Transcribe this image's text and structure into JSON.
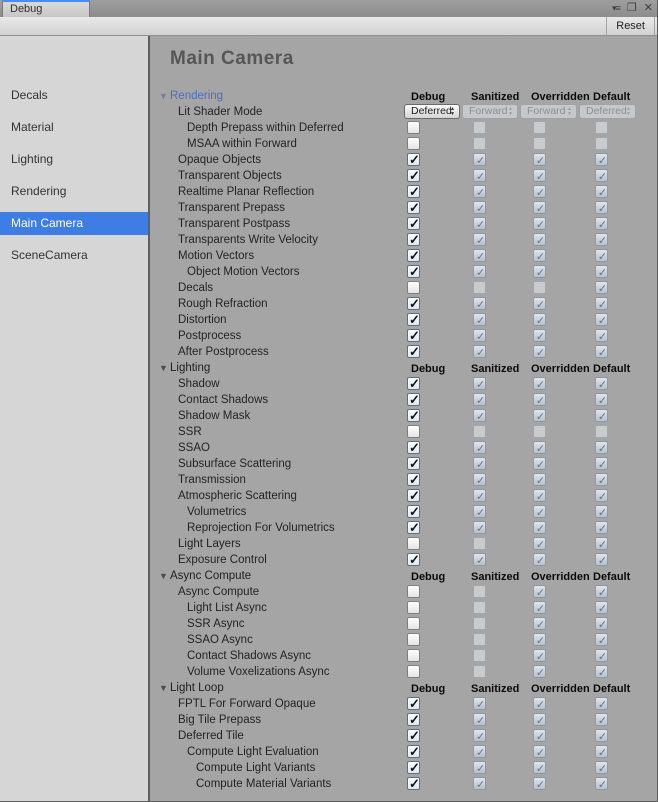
{
  "window": {
    "tab_title": "Debug",
    "controls": {
      "menu_icon": "window-menu-icon",
      "maximize_icon": "maximize-icon",
      "close_icon": "close-icon"
    }
  },
  "toolbar": {
    "reset_label": "Reset"
  },
  "colors": {
    "selection_blue": "#3e7de4",
    "section_header_blue": "#4a6ec5",
    "tab_accent_blue": "#4a8af4",
    "main_panel_gray": "#a5a5a5",
    "sidebar_gray": "#d6d6d6"
  },
  "sidebar": {
    "items": [
      {
        "label": "Decals",
        "selected": false
      },
      {
        "label": "Material",
        "selected": false
      },
      {
        "label": "Lighting",
        "selected": false
      },
      {
        "label": "Rendering",
        "selected": false
      },
      {
        "label": "Main Camera",
        "selected": true
      },
      {
        "label": "SceneCamera",
        "selected": false
      }
    ]
  },
  "main": {
    "title": "Main Camera",
    "columns": [
      "Debug",
      "Sanitized",
      "Overridden",
      "Default"
    ],
    "sections": [
      {
        "label": "Rendering",
        "blue": true,
        "rows": [
          {
            "label": "Lit Shader Mode",
            "indent": 1,
            "type": "dropdown",
            "values": [
              "Deferred",
              "Forward",
              "Forward",
              "Deferred"
            ]
          },
          {
            "label": "Depth Prepass within Deferred",
            "indent": 2,
            "checks": [
              false,
              false,
              false,
              false
            ]
          },
          {
            "label": "MSAA within Forward",
            "indent": 2,
            "checks": [
              false,
              false,
              false,
              false
            ]
          },
          {
            "label": "Opaque Objects",
            "indent": 1,
            "checks": [
              true,
              true,
              true,
              true
            ]
          },
          {
            "label": "Transparent Objects",
            "indent": 1,
            "checks": [
              true,
              true,
              true,
              true
            ]
          },
          {
            "label": "Realtime Planar Reflection",
            "indent": 1,
            "checks": [
              true,
              true,
              true,
              true
            ]
          },
          {
            "label": "Transparent Prepass",
            "indent": 1,
            "checks": [
              true,
              true,
              true,
              true
            ]
          },
          {
            "label": "Transparent Postpass",
            "indent": 1,
            "checks": [
              true,
              true,
              true,
              true
            ]
          },
          {
            "label": "Transparents Write Velocity",
            "indent": 1,
            "checks": [
              true,
              true,
              true,
              true
            ]
          },
          {
            "label": "Motion Vectors",
            "indent": 1,
            "checks": [
              true,
              true,
              true,
              true
            ]
          },
          {
            "label": "Object Motion Vectors",
            "indent": 2,
            "checks": [
              true,
              true,
              true,
              true
            ]
          },
          {
            "label": "Decals",
            "indent": 1,
            "checks": [
              false,
              false,
              false,
              true
            ]
          },
          {
            "label": "Rough Refraction",
            "indent": 1,
            "checks": [
              true,
              true,
              true,
              true
            ]
          },
          {
            "label": "Distortion",
            "indent": 1,
            "checks": [
              true,
              true,
              true,
              true
            ]
          },
          {
            "label": "Postprocess",
            "indent": 1,
            "checks": [
              true,
              true,
              true,
              true
            ]
          },
          {
            "label": "After Postprocess",
            "indent": 1,
            "checks": [
              true,
              true,
              true,
              true
            ]
          }
        ]
      },
      {
        "label": "Lighting",
        "blue": false,
        "rows": [
          {
            "label": "Shadow",
            "indent": 1,
            "checks": [
              true,
              true,
              true,
              true
            ]
          },
          {
            "label": "Contact Shadows",
            "indent": 1,
            "checks": [
              true,
              true,
              true,
              true
            ]
          },
          {
            "label": "Shadow Mask",
            "indent": 1,
            "checks": [
              true,
              true,
              true,
              true
            ]
          },
          {
            "label": "SSR",
            "indent": 1,
            "checks": [
              false,
              false,
              false,
              false
            ]
          },
          {
            "label": "SSAO",
            "indent": 1,
            "checks": [
              true,
              true,
              true,
              true
            ]
          },
          {
            "label": "Subsurface Scattering",
            "indent": 1,
            "checks": [
              true,
              true,
              true,
              true
            ]
          },
          {
            "label": "Transmission",
            "indent": 1,
            "checks": [
              true,
              true,
              true,
              true
            ]
          },
          {
            "label": "Atmospheric Scattering",
            "indent": 1,
            "checks": [
              true,
              true,
              true,
              true
            ]
          },
          {
            "label": "Volumetrics",
            "indent": 2,
            "checks": [
              true,
              true,
              true,
              true
            ]
          },
          {
            "label": "Reprojection For Volumetrics",
            "indent": 2,
            "checks": [
              true,
              true,
              true,
              true
            ]
          },
          {
            "label": "Light Layers",
            "indent": 1,
            "checks": [
              false,
              false,
              true,
              true
            ]
          },
          {
            "label": "Exposure Control",
            "indent": 1,
            "checks": [
              true,
              true,
              true,
              true
            ]
          }
        ]
      },
      {
        "label": "Async Compute",
        "blue": false,
        "rows": [
          {
            "label": "Async Compute",
            "indent": 1,
            "checks": [
              false,
              false,
              true,
              true
            ]
          },
          {
            "label": "Light List Async",
            "indent": 2,
            "checks": [
              false,
              false,
              true,
              true
            ]
          },
          {
            "label": "SSR Async",
            "indent": 2,
            "checks": [
              false,
              false,
              true,
              true
            ]
          },
          {
            "label": "SSAO Async",
            "indent": 2,
            "checks": [
              false,
              false,
              true,
              true
            ]
          },
          {
            "label": "Contact Shadows Async",
            "indent": 2,
            "checks": [
              false,
              false,
              true,
              true
            ]
          },
          {
            "label": "Volume Voxelizations Async",
            "indent": 2,
            "checks": [
              false,
              false,
              true,
              true
            ]
          }
        ]
      },
      {
        "label": "Light Loop",
        "blue": false,
        "rows": [
          {
            "label": "FPTL For Forward Opaque",
            "indent": 1,
            "checks": [
              true,
              true,
              true,
              true
            ]
          },
          {
            "label": "Big Tile Prepass",
            "indent": 1,
            "checks": [
              true,
              true,
              true,
              true
            ]
          },
          {
            "label": "Deferred Tile",
            "indent": 1,
            "checks": [
              true,
              true,
              true,
              true
            ]
          },
          {
            "label": "Compute Light Evaluation",
            "indent": 2,
            "checks": [
              true,
              true,
              true,
              true
            ]
          },
          {
            "label": "Compute Light Variants",
            "indent": 3,
            "checks": [
              true,
              true,
              true,
              true
            ]
          },
          {
            "label": "Compute Material Variants",
            "indent": 3,
            "checks": [
              true,
              true,
              true,
              true
            ]
          }
        ]
      }
    ]
  }
}
